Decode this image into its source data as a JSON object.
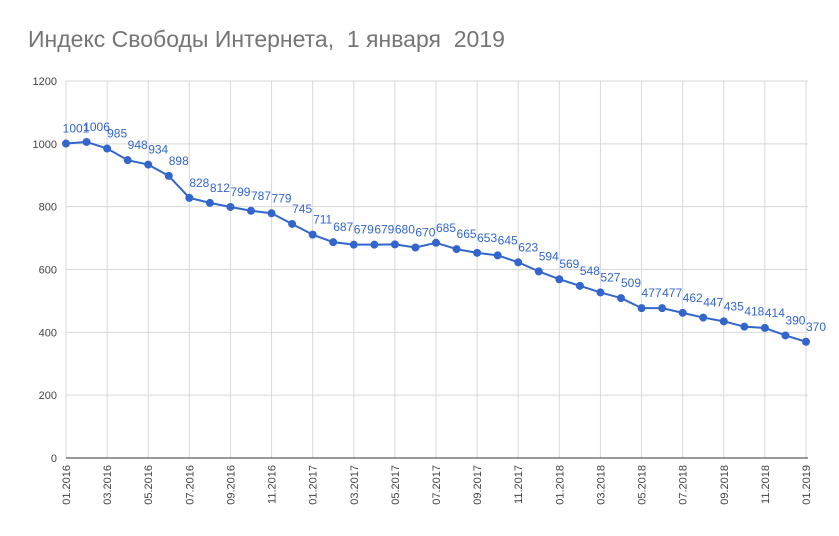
{
  "chart_data": {
    "type": "line",
    "title": "Индекс Свободы Интернета,  1 января  2019",
    "xlabel": "",
    "ylabel": "",
    "ylim": [
      0,
      1200
    ],
    "yticks": [
      "0",
      "200",
      "400",
      "600",
      "800",
      "1000",
      "1200"
    ],
    "xticks": [
      "01.2016",
      "03.2016",
      "05.2016",
      "07.2016",
      "09.2016",
      "11.2016",
      "01.2017",
      "03.2017",
      "05.2017",
      "07.2017",
      "09.2017",
      "11.2017",
      "01.2018",
      "03.2018",
      "05.2018",
      "07.2018",
      "09.2018",
      "11.2018",
      "01.2019"
    ],
    "grid": true,
    "legend": "none",
    "color": "#3366cc",
    "series": [
      {
        "values": [
          1001,
          1006,
          985,
          948,
          934,
          898,
          828,
          812,
          799,
          787,
          779,
          745,
          711,
          687,
          679,
          679,
          680,
          670,
          685,
          665,
          653,
          645,
          623,
          594,
          569,
          548,
          527,
          509,
          477,
          477,
          462,
          447,
          435,
          418,
          414,
          390,
          370
        ]
      }
    ]
  }
}
